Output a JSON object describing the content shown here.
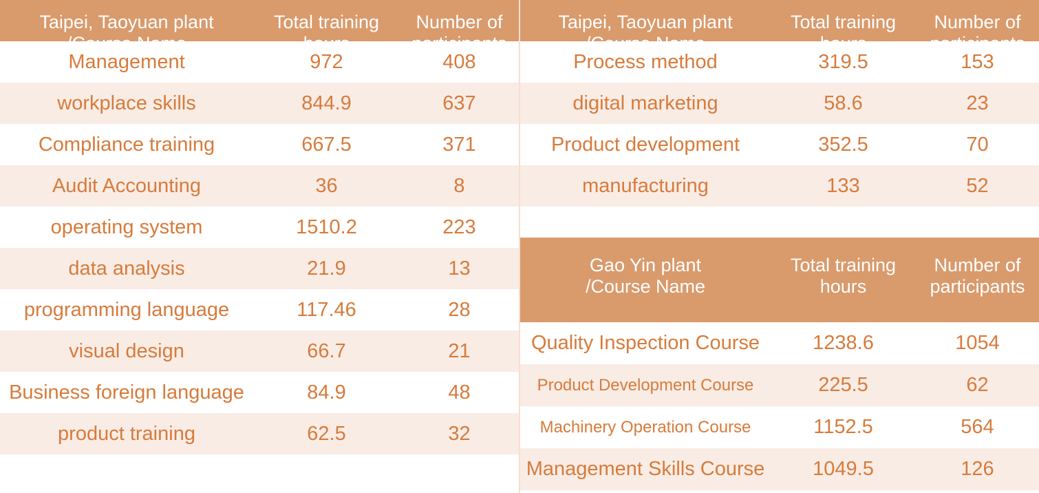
{
  "taipei": {
    "headers": [
      "Taipei, Taoyuan plant\n/Course Name",
      "Total training\nhours",
      "Number of\nparticipants"
    ],
    "left_rows": [
      {
        "course": "Management",
        "hours": "972",
        "participants": "408"
      },
      {
        "course": "workplace skills",
        "hours": "844.9",
        "participants": "637"
      },
      {
        "course": "Compliance training",
        "hours": "667.5",
        "participants": "371"
      },
      {
        "course": "Audit Accounting",
        "hours": "36",
        "participants": "8"
      },
      {
        "course": "operating system",
        "hours": "1510.2",
        "participants": "223"
      },
      {
        "course": "data analysis",
        "hours": "21.9",
        "participants": "13"
      },
      {
        "course": "programming language",
        "hours": "117.46",
        "participants": "28"
      },
      {
        "course": "visual design",
        "hours": "66.7",
        "participants": "21"
      },
      {
        "course": "Business foreign language",
        "hours": "84.9",
        "participants": "48"
      },
      {
        "course": "product training",
        "hours": "62.5",
        "participants": "32"
      }
    ],
    "right_rows": [
      {
        "course": "Process method",
        "hours": "319.5",
        "participants": "153"
      },
      {
        "course": "digital marketing",
        "hours": "58.6",
        "participants": "23"
      },
      {
        "course": "Product development",
        "hours": "352.5",
        "participants": "70"
      },
      {
        "course": "manufacturing",
        "hours": "133",
        "participants": "52"
      }
    ]
  },
  "gaoyin": {
    "headers": [
      "Gao Yin plant\n/Course Name",
      "Total training\nhours",
      "Number of\nparticipants"
    ],
    "rows": [
      {
        "course": "Quality Inspection Course",
        "hours": "1238.6",
        "participants": "1054"
      },
      {
        "course": "Product Development Course",
        "hours": "225.5",
        "participants": "62"
      },
      {
        "course": "Machinery Operation Course",
        "hours": "1152.5",
        "participants": "564"
      },
      {
        "course": "Management Skills Course",
        "hours": "1049.5",
        "participants": "126"
      }
    ]
  },
  "colors": {
    "header_bg": "#d99a6c",
    "header_text": "#ffffff",
    "row_alt_bg": "#f9ece5",
    "text": "#d77b3b"
  }
}
